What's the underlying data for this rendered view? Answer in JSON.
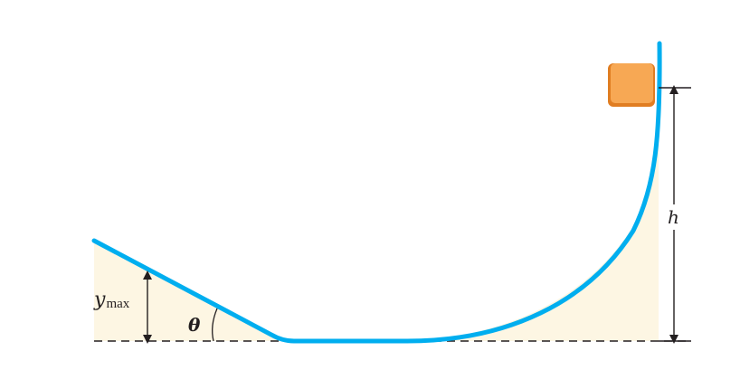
{
  "labels": {
    "ymax_main": "y",
    "ymax_sub": "max",
    "theta": "θ",
    "height": "h"
  },
  "colors": {
    "track": "#00aeef",
    "ground_fill": "#fdf6e3",
    "block_face": "#f7a854",
    "block_edge": "#e07d21",
    "dimension_line": "#231f20",
    "dashed_baseline": "#231f20"
  },
  "icons": {
    "block": "block-icon",
    "arrow": "double-arrow-icon"
  }
}
